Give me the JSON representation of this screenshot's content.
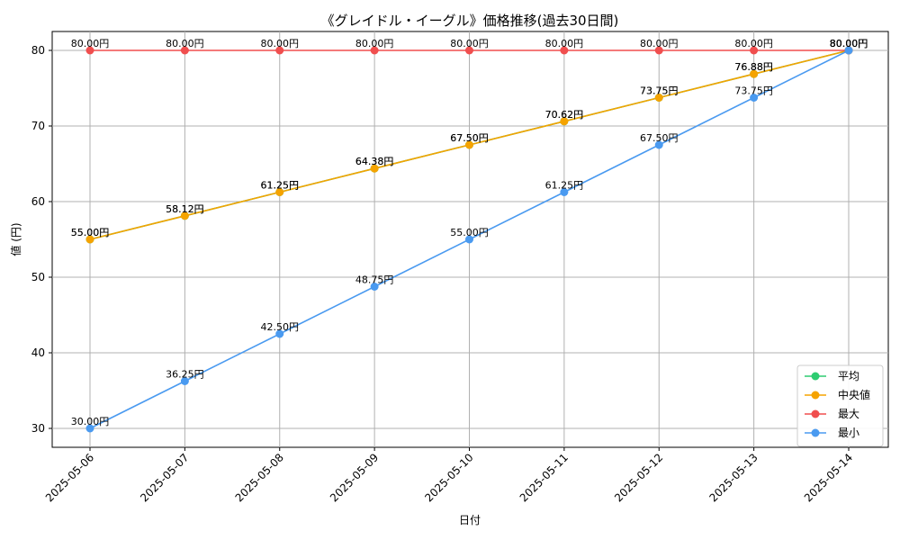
{
  "chart_data": {
    "type": "line",
    "title": "《グレイドル・イーグル》価格推移(過去30日間)",
    "xlabel": "日付",
    "ylabel": "値 (円)",
    "categories": [
      "2025-05-06",
      "2025-05-07",
      "2025-05-08",
      "2025-05-09",
      "2025-05-10",
      "2025-05-11",
      "2025-05-12",
      "2025-05-13",
      "2025-05-14"
    ],
    "ylim": [
      27.5,
      82.5
    ],
    "yticks": [
      30,
      40,
      50,
      60,
      70,
      80
    ],
    "grid": true,
    "legend_position": "bottom-right",
    "unit_suffix": "円",
    "series": [
      {
        "name": "平均",
        "color": "#2ecc71",
        "values": [
          55.0,
          58.12,
          61.25,
          64.38,
          67.5,
          70.62,
          73.75,
          76.88,
          80.0
        ]
      },
      {
        "name": "中央値",
        "color": "#f5a300",
        "values": [
          55.0,
          58.12,
          61.25,
          64.38,
          67.5,
          70.62,
          73.75,
          76.88,
          80.0
        ]
      },
      {
        "name": "最大",
        "color": "#f04e4e",
        "values": [
          80.0,
          80.0,
          80.0,
          80.0,
          80.0,
          80.0,
          80.0,
          80.0,
          80.0
        ]
      },
      {
        "name": "最小",
        "color": "#4a9af0",
        "values": [
          30.0,
          36.25,
          42.5,
          48.75,
          55.0,
          61.25,
          67.5,
          73.75,
          80.0
        ]
      }
    ]
  }
}
